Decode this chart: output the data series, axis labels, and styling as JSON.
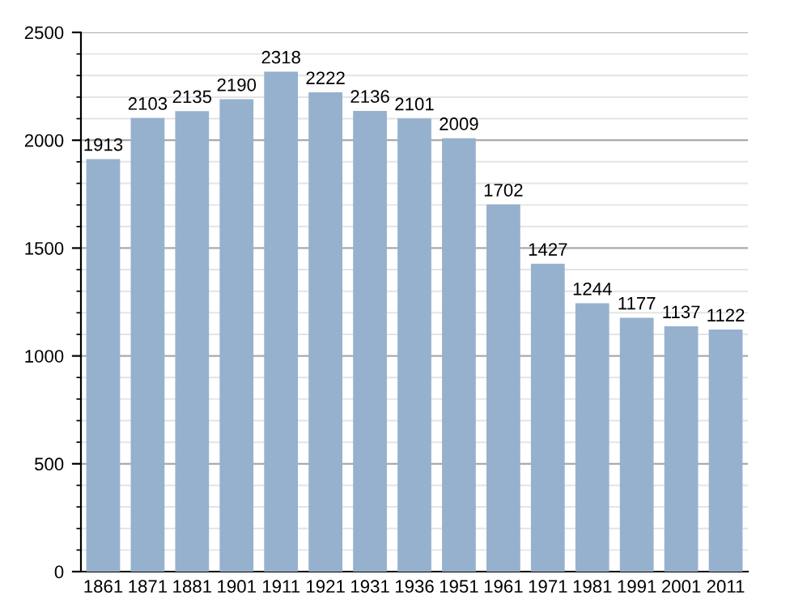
{
  "chart_data": {
    "type": "bar",
    "categories": [
      "1861",
      "1871",
      "1881",
      "1901",
      "1911",
      "1921",
      "1931",
      "1936",
      "1951",
      "1961",
      "1971",
      "1981",
      "1991",
      "2001",
      "2011"
    ],
    "values": [
      1913,
      2103,
      2135,
      2190,
      2318,
      2222,
      2136,
      2101,
      2009,
      1702,
      1427,
      1244,
      1177,
      1137,
      1122
    ],
    "color": "#96b1cd",
    "ylim": [
      0,
      2500
    ],
    "yticks": [
      0,
      500,
      1000,
      1500,
      2000,
      2500
    ],
    "grid": "y",
    "data_labels": true
  }
}
